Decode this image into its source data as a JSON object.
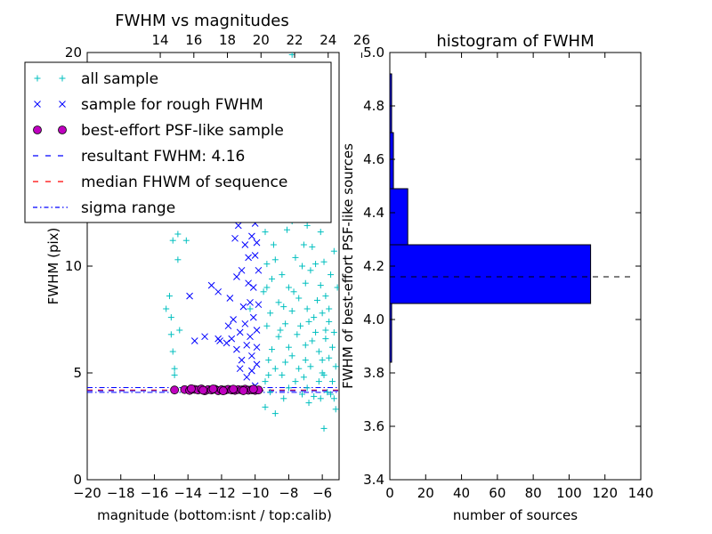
{
  "chart_data": [
    {
      "type": "scatter",
      "title": "FWHM vs magnitudes",
      "xlabel": "magnitude (bottom:isnt / top:calib)",
      "ylabel": "FWHM (pix)",
      "xlim": [
        -20,
        -5
      ],
      "ylim": [
        0,
        20
      ],
      "x_ticks": [
        "−20",
        "−18",
        "−16",
        "−14",
        "−12",
        "−10",
        "−8",
        "−6"
      ],
      "x_tick_values": [
        -20,
        -18,
        -16,
        -14,
        -12,
        -10,
        -8,
        -6
      ],
      "top_ticks": [
        "14",
        "16",
        "18",
        "20",
        "22",
        "24",
        "26"
      ],
      "top_tick_values": [
        14,
        16,
        18,
        20,
        22,
        24,
        26
      ],
      "top_offset": 29.65,
      "y_ticks": [
        "0",
        "5",
        "10",
        "20"
      ],
      "y_tick_values": [
        0,
        5,
        10,
        20
      ],
      "colors": {
        "all": "#00bfbf",
        "rough": "#0000ff",
        "best": "#bf00bf",
        "resultant": "#0000ff",
        "median": "#ff0000",
        "sigma": "#0000ff"
      },
      "legend": {
        "placement": "upper-left",
        "entries": [
          {
            "label": "all sample",
            "marker": "plus"
          },
          {
            "label": "sample for rough FWHM",
            "marker": "x"
          },
          {
            "label": "best-effort PSF-like sample",
            "marker": "circle"
          },
          {
            "label": "resultant FWHM: 4.16",
            "marker": "dashed"
          },
          {
            "label": "median FHWM of sequence",
            "marker": "dashed-red"
          },
          {
            "label": "sigma range",
            "marker": "dashdot"
          }
        ]
      },
      "series": [
        {
          "name": "all sample",
          "marker": "plus",
          "points": [
            [
              -15.3,
              8.0
            ],
            [
              -15.0,
              7.6
            ],
            [
              -15.0,
              6.8
            ],
            [
              -14.9,
              6.0
            ],
            [
              -14.8,
              4.9
            ],
            [
              -14.8,
              5.2
            ],
            [
              -14.6,
              10.3
            ],
            [
              -14.6,
              11.5
            ],
            [
              -14.9,
              11.2
            ],
            [
              -15.1,
              8.6
            ],
            [
              -14.5,
              7.0
            ],
            [
              -14.1,
              11.2
            ],
            [
              -11.2,
              13.0
            ],
            [
              -10.3,
              8.0
            ],
            [
              -12.3,
              16.0
            ],
            [
              -10.1,
              14.4
            ],
            [
              -7.8,
              19.9
            ],
            [
              -7.3,
              19.1
            ],
            [
              -7.5,
              17.1
            ],
            [
              -8.0,
              15.8
            ],
            [
              -7.0,
              15.4
            ],
            [
              -8.4,
              16.9
            ],
            [
              -8.8,
              14.9
            ],
            [
              -6.6,
              14.0
            ],
            [
              -6.2,
              12.3
            ],
            [
              -5.5,
              9.6
            ],
            [
              -5.3,
              10.7
            ],
            [
              -5.1,
              9.0
            ],
            [
              -5.6,
              8.0
            ],
            [
              -5.8,
              7.0
            ],
            [
              -6.8,
              3.6
            ],
            [
              -5.9,
              2.4
            ],
            [
              -5.2,
              3.3
            ],
            [
              -8.8,
              3.1
            ],
            [
              -9.4,
              3.4
            ],
            [
              -5.5,
              4.0
            ],
            [
              -5.4,
              6.2
            ],
            [
              -6.0,
              5.6
            ],
            [
              -9.3,
              7.2
            ],
            [
              -9.2,
              5.6
            ],
            [
              -9.4,
              4.6
            ],
            [
              -9.5,
              8.8
            ],
            [
              -9.3,
              10.1
            ],
            [
              -9.4,
              11.6
            ],
            [
              -9.1,
              13.0
            ],
            [
              -9.0,
              12.2
            ],
            [
              -8.9,
              11.0
            ],
            [
              -8.6,
              12.7
            ],
            [
              -8.4,
              13.6
            ],
            [
              -8.1,
              11.7
            ],
            [
              -7.9,
              14.2
            ],
            [
              -7.6,
              13.1
            ],
            [
              -7.2,
              12.7
            ],
            [
              -6.9,
              11.9
            ],
            [
              -6.6,
              10.9
            ],
            [
              -6.4,
              10.1
            ],
            [
              -6.1,
              9.1
            ],
            [
              -5.8,
              8.6
            ],
            [
              -5.6,
              7.4
            ],
            [
              -5.3,
              6.9
            ],
            [
              -5.2,
              5.3
            ],
            [
              -5.4,
              4.6
            ],
            [
              -5.7,
              4.1
            ],
            [
              -6.1,
              3.8
            ],
            [
              -6.5,
              3.9
            ],
            [
              -6.9,
              4.3
            ],
            [
              -7.2,
              4.0
            ],
            [
              -7.6,
              4.6
            ],
            [
              -8.0,
              4.3
            ],
            [
              -8.4,
              4.9
            ],
            [
              -8.8,
              5.2
            ],
            [
              -9.2,
              4.9
            ],
            [
              -9.0,
              6.1
            ],
            [
              -8.6,
              6.7
            ],
            [
              -8.2,
              7.3
            ],
            [
              -7.8,
              7.9
            ],
            [
              -7.4,
              8.5
            ],
            [
              -7.0,
              9.2
            ],
            [
              -6.7,
              9.8
            ],
            [
              -6.3,
              8.4
            ],
            [
              -6.0,
              7.8
            ],
            [
              -5.8,
              6.6
            ],
            [
              -6.2,
              6.0
            ],
            [
              -6.6,
              6.5
            ],
            [
              -7.0,
              5.6
            ],
            [
              -7.4,
              5.2
            ],
            [
              -7.8,
              5.8
            ],
            [
              -8.2,
              5.5
            ],
            [
              -8.6,
              8.3
            ],
            [
              -9.0,
              9.4
            ],
            [
              -8.8,
              10.3
            ],
            [
              -8.4,
              9.6
            ],
            [
              -8.0,
              9.0
            ],
            [
              -7.6,
              10.4
            ],
            [
              -7.2,
              10.0
            ],
            [
              -6.8,
              7.4
            ],
            [
              -6.4,
              6.9
            ],
            [
              -6.0,
              5.0
            ],
            [
              -5.6,
              5.7
            ],
            [
              -7.0,
              6.3
            ],
            [
              -7.5,
              6.8
            ],
            [
              -8.0,
              6.2
            ],
            [
              -8.5,
              7.0
            ],
            [
              -9.1,
              7.8
            ],
            [
              -7.3,
              7.2
            ],
            [
              -6.9,
              8.0
            ],
            [
              -6.5,
              7.6
            ],
            [
              -7.7,
              8.8
            ],
            [
              -8.3,
              8.1
            ],
            [
              -9.3,
              9.0
            ],
            [
              -7.1,
              11.0
            ],
            [
              -7.8,
              12.1
            ],
            [
              -8.7,
              13.8
            ],
            [
              -9.2,
              14.6
            ],
            [
              -7.4,
              15.0
            ],
            [
              -8.2,
              16.2
            ],
            [
              -6.8,
              13.2
            ],
            [
              -6.1,
              11.6
            ],
            [
              -5.9,
              10.2
            ],
            [
              -8.9,
              15.6
            ],
            [
              -7.9,
              17.8
            ],
            [
              -8.5,
              18.5
            ],
            [
              -8.1,
              13.0
            ],
            [
              -6.7,
              5.3
            ],
            [
              -6.2,
              4.6
            ],
            [
              -5.9,
              4.9
            ],
            [
              -5.3,
              3.8
            ],
            [
              -7.1,
              4.8
            ],
            [
              -8.3,
              3.8
            ],
            [
              -9.1,
              4.1
            ]
          ]
        },
        {
          "name": "sample for rough FWHM",
          "marker": "x",
          "points": [
            [
              -13.6,
              6.5
            ],
            [
              -13.0,
              6.7
            ],
            [
              -12.2,
              6.6
            ],
            [
              -13.9,
              8.6
            ],
            [
              -12.6,
              9.1
            ],
            [
              -12.2,
              8.8
            ],
            [
              -11.5,
              8.5
            ],
            [
              -11.1,
              9.5
            ],
            [
              -10.8,
              9.8
            ],
            [
              -10.4,
              10.4
            ],
            [
              -10.2,
              11.4
            ],
            [
              -10.0,
              12.0
            ],
            [
              -11.2,
              11.3
            ],
            [
              -11.0,
              11.9
            ],
            [
              -10.7,
              12.2
            ],
            [
              -10.2,
              12.6
            ],
            [
              -9.9,
              11.1
            ],
            [
              -10.6,
              11.0
            ],
            [
              -11.0,
              13.1
            ],
            [
              -10.1,
              13.9
            ],
            [
              -10.5,
              13.4
            ],
            [
              -10.3,
              8.3
            ],
            [
              -10.1,
              7.6
            ],
            [
              -9.9,
              7.0
            ],
            [
              -10.3,
              6.7
            ],
            [
              -10.6,
              7.3
            ],
            [
              -11.1,
              6.1
            ],
            [
              -10.8,
              5.6
            ],
            [
              -10.2,
              5.1
            ],
            [
              -9.9,
              5.4
            ],
            [
              -10.5,
              4.8
            ],
            [
              -10.0,
              4.4
            ],
            [
              -11.4,
              6.6
            ],
            [
              -11.7,
              6.4
            ],
            [
              -10.9,
              6.9
            ],
            [
              -10.4,
              9.2
            ],
            [
              -9.8,
              9.8
            ],
            [
              -9.8,
              8.2
            ],
            [
              -10.0,
              10.5
            ],
            [
              -9.9,
              6.2
            ],
            [
              -10.2,
              5.8
            ],
            [
              -11.3,
              7.5
            ],
            [
              -10.7,
              8.1
            ],
            [
              -11.6,
              7.2
            ],
            [
              -10.1,
              9.0
            ],
            [
              -9.8,
              12.9
            ],
            [
              -10.5,
              6.3
            ],
            [
              -10.9,
              5.2
            ],
            [
              -12.1,
              6.5
            ]
          ]
        },
        {
          "name": "best-effort PSF-like sample",
          "marker": "circle",
          "points": [
            [
              -14.8,
              4.2
            ],
            [
              -14.2,
              4.22
            ],
            [
              -13.9,
              4.18
            ],
            [
              -13.6,
              4.23
            ],
            [
              -13.4,
              4.2
            ],
            [
              -13.2,
              4.25
            ],
            [
              -13.0,
              4.16
            ],
            [
              -12.8,
              4.22
            ],
            [
              -12.6,
              4.2
            ],
            [
              -12.4,
              4.24
            ],
            [
              -12.2,
              4.17
            ],
            [
              -12.0,
              4.21
            ],
            [
              -11.8,
              4.19
            ],
            [
              -11.6,
              4.23
            ],
            [
              -11.4,
              4.2
            ],
            [
              -11.2,
              4.18
            ],
            [
              -11.0,
              4.22
            ],
            [
              -10.8,
              4.2
            ],
            [
              -10.6,
              4.24
            ],
            [
              -10.4,
              4.19
            ],
            [
              -10.2,
              4.21
            ],
            [
              -10.0,
              4.18
            ],
            [
              -9.8,
              4.2
            ],
            [
              -13.8,
              4.26
            ],
            [
              -13.1,
              4.19
            ],
            [
              -12.5,
              4.25
            ],
            [
              -11.9,
              4.16
            ],
            [
              -11.3,
              4.24
            ],
            [
              -10.7,
              4.17
            ],
            [
              -10.1,
              4.24
            ]
          ]
        }
      ],
      "lines": {
        "resultant": 4.16,
        "median": 4.2,
        "sigma_low": 4.09,
        "sigma_high": 4.31
      }
    },
    {
      "type": "bar",
      "orientation": "horizontal",
      "title": "histogram of FWHM",
      "xlabel": "number of sources",
      "ylabel": "FWHM of best-effort PSF-like sources",
      "xlim": [
        0,
        140
      ],
      "ylim": [
        3.4,
        5.0
      ],
      "x_ticks": [
        "0",
        "20",
        "40",
        "60",
        "80",
        "100",
        "120",
        "140"
      ],
      "x_tick_values": [
        0,
        20,
        40,
        60,
        80,
        100,
        120,
        140
      ],
      "y_ticks": [
        "3.4",
        "3.6",
        "3.8",
        "4.0",
        "4.2",
        "4.4",
        "4.6",
        "4.8",
        "5.0"
      ],
      "y_tick_values": [
        3.4,
        3.6,
        3.8,
        4.0,
        4.2,
        4.4,
        4.6,
        4.8,
        5.0
      ],
      "bins": [
        {
          "low": 3.84,
          "high": 4.06,
          "count": 1
        },
        {
          "low": 4.06,
          "high": 4.28,
          "count": 112
        },
        {
          "low": 4.28,
          "high": 4.49,
          "count": 10
        },
        {
          "low": 4.49,
          "high": 4.7,
          "count": 2
        },
        {
          "low": 4.7,
          "high": 4.92,
          "count": 1
        }
      ],
      "bar_color": "#0000ff",
      "reference_line": 4.16
    }
  ]
}
